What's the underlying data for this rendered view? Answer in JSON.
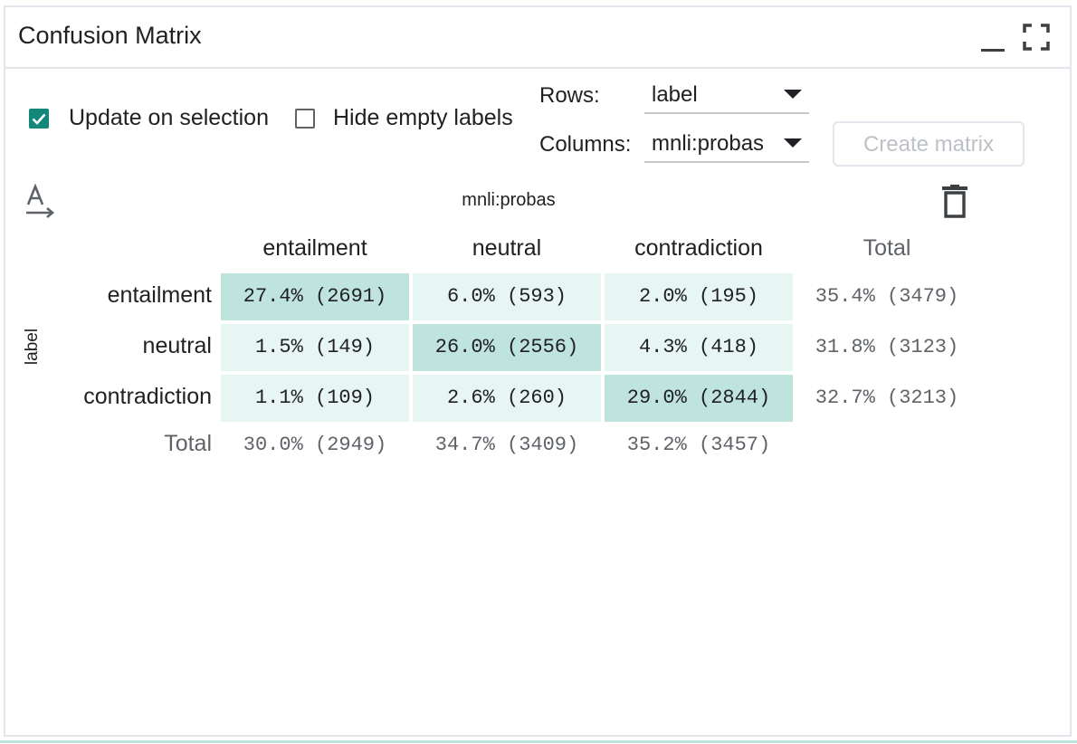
{
  "panel": {
    "title": "Confusion Matrix"
  },
  "controls": {
    "update_on_selection": {
      "label": "Update on selection",
      "checked": true
    },
    "hide_empty_labels": {
      "label": "Hide empty labels",
      "checked": false
    },
    "rows_label": "Rows:",
    "rows_value": "label",
    "columns_label": "Columns:",
    "columns_value": "mnli:probas",
    "create_button": "Create matrix"
  },
  "matrix": {
    "column_axis": "mnli:probas",
    "row_axis": "label",
    "columns": [
      "entailment",
      "neutral",
      "contradiction"
    ],
    "rows": [
      "entailment",
      "neutral",
      "contradiction"
    ],
    "total_label": "Total",
    "cells": [
      [
        "27.4% (2691)",
        "6.0% (593)",
        "2.0% (195)"
      ],
      [
        "1.5% (149)",
        "26.0% (2556)",
        "4.3% (418)"
      ],
      [
        "1.1% (109)",
        "2.6% (260)",
        "29.0% (2844)"
      ]
    ],
    "row_totals": [
      "35.4% (3479)",
      "31.8% (3123)",
      "32.7% (3213)"
    ],
    "col_totals": [
      "30.0% (2949)",
      "34.7% (3409)",
      "35.2% (3457)"
    ]
  },
  "colors": {
    "accent": "#12877a",
    "diagonal_cell": "#bfe3dd",
    "offdiagonal_cell": "#e8f6f3"
  }
}
